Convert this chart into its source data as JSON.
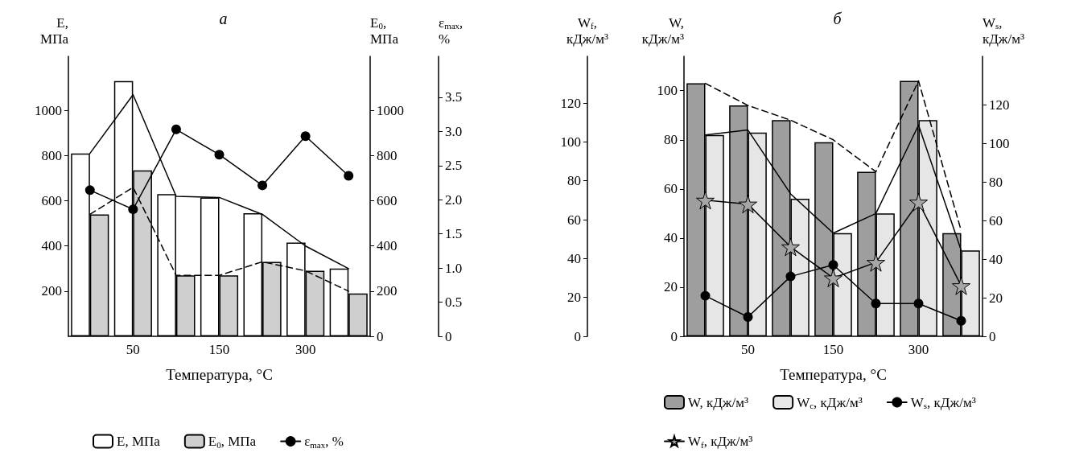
{
  "chart_data": [
    {
      "type": "bar",
      "title": "а",
      "xlabel": "Температура, °C",
      "ylabel": "E, МПа",
      "y2label": "E$_{0}$, МПа",
      "y3label": "ε$_{max}$, %",
      "categories": [
        null,
        "50",
        null,
        "150",
        null,
        "300",
        null
      ],
      "ylim": [
        0,
        1240
      ],
      "yticks": [
        200,
        400,
        600,
        800,
        1000
      ],
      "y2lim": [
        0,
        1240
      ],
      "y2ticks": [
        0,
        200,
        400,
        600,
        800,
        1000
      ],
      "y3lim": [
        0,
        4.1
      ],
      "y3ticks": [
        0,
        0.5,
        {
          "value": 1,
          "label": "1.0"
        },
        1.5,
        {
          "value": 2,
          "label": "2.0"
        },
        2.5,
        {
          "value": 3,
          "label": "3.0"
        },
        3.5
      ],
      "legend": "bottom",
      "grid": false,
      "series": [
        {
          "name": "E, МПа",
          "color": "#ffffff",
          "values": [
            810,
            1130,
            630,
            615,
            545,
            415,
            300
          ]
        },
        {
          "name": "E$_{0}$, МПа",
          "axis": "y2",
          "color": "#cfcfcf",
          "values": [
            540,
            735,
            270,
            270,
            330,
            290,
            190
          ]
        },
        {
          "name": "ε$_{max}$, %",
          "type": "line",
          "axis": "y3",
          "color": "#000000",
          "marker": "circle",
          "line_style": "solid",
          "values": [
            2.14,
            1.86,
            3.03,
            2.66,
            2.21,
            2.93,
            2.35
          ]
        },
        {
          "type": "line",
          "color": "#000000",
          "marker": "none",
          "line_style": "solid",
          "values": [
            810,
            1070,
            620,
            615,
            540,
            400,
            300
          ]
        },
        {
          "type": "line",
          "axis": "y2",
          "color": "#000000",
          "marker": "none",
          "line_style": "dashed",
          "values": [
            540,
            660,
            270,
            270,
            330,
            290,
            200
          ]
        }
      ]
    },
    {
      "type": "bar",
      "title": "б",
      "xlabel": "Температура, °C",
      "ylabel": "W, кДж/м³",
      "y2label": "W$_{s}$, кДж/м³",
      "y3label": "W$_{f}$, кДж/м³",
      "categories": [
        null,
        "50",
        null,
        "150",
        null,
        "300",
        null
      ],
      "ylim": [
        0,
        114
      ],
      "yticks": [
        0,
        20,
        40,
        60,
        80,
        100
      ],
      "y2lim": [
        0,
        145
      ],
      "y2ticks": [
        0,
        20,
        40,
        60,
        80,
        100,
        120
      ],
      "y3lim": [
        0,
        144
      ],
      "y3ticks": [
        0,
        20,
        40,
        60,
        80,
        100,
        120
      ],
      "legend": "bottom",
      "grid": false,
      "series": [
        {
          "name": "W, кДж/м³",
          "color": "#9e9e9e",
          "values": [
            103,
            94,
            88,
            79,
            67,
            104,
            42
          ]
        },
        {
          "name": "W$_{c}$, кДж/м³",
          "color": "#e6e6e6",
          "values": [
            82,
            83,
            56,
            42,
            50,
            88,
            35
          ]
        },
        {
          "name": "W$_{s}$, кДж/м³",
          "type": "line",
          "axis": "y2",
          "color": "#000000",
          "marker": "circle",
          "line_style": "solid",
          "values": [
            21,
            10,
            31,
            37,
            17,
            17,
            8
          ]
        },
        {
          "name": "W$_{f}$, кДж/м³",
          "type": "line",
          "axis": "y3",
          "color": "#a6a6a6",
          "marker": "star",
          "line_style": "solid",
          "values": [
            70,
            68,
            46,
            30,
            38,
            69,
            26
          ]
        },
        {
          "type": "line",
          "color": "#000000",
          "marker": "none",
          "line_style": "solid",
          "values": [
            82,
            84,
            58,
            42,
            50,
            86,
            35
          ]
        },
        {
          "type": "line",
          "color": "#000000",
          "marker": "none",
          "line_style": "dashed",
          "values": [
            103,
            94,
            88,
            80,
            67,
            104,
            43
          ]
        }
      ]
    }
  ]
}
